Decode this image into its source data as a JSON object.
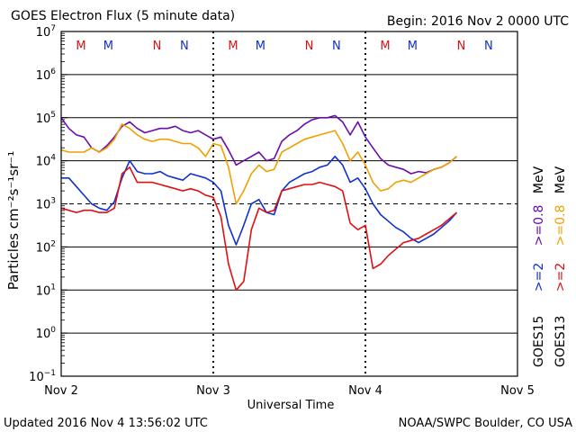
{
  "chart_data": {
    "type": "line",
    "title": "GOES Electron Flux (5 minute data)",
    "begin_label": "Begin: 2016 Nov 2 0000 UTC",
    "xlabel": "Universal Time",
    "ylabel": "Particles cm⁻²s⁻¹sr⁻¹",
    "yscale": "log",
    "ylim_exp": [
      -1,
      7
    ],
    "y_tick_exponents": [
      7,
      6,
      5,
      4,
      3,
      2,
      1,
      0,
      -1
    ],
    "y_tick_base": "10",
    "xlim_days": [
      0,
      3
    ],
    "x_ticks": [
      {
        "day": 0,
        "label": "Nov 2"
      },
      {
        "day": 1,
        "label": "Nov 3"
      },
      {
        "day": 2,
        "label": "Nov 4"
      },
      {
        "day": 3,
        "label": "Nov 5"
      }
    ],
    "reference_line_exp": 3,
    "mn_markers": [
      {
        "day": 0.13,
        "label": "M",
        "sat": "GOES13"
      },
      {
        "day": 0.31,
        "label": "M",
        "sat": "GOES15"
      },
      {
        "day": 0.63,
        "label": "N",
        "sat": "GOES13"
      },
      {
        "day": 0.81,
        "label": "N",
        "sat": "GOES15"
      },
      {
        "day": 1.13,
        "label": "M",
        "sat": "GOES13"
      },
      {
        "day": 1.31,
        "label": "M",
        "sat": "GOES15"
      },
      {
        "day": 1.63,
        "label": "N",
        "sat": "GOES13"
      },
      {
        "day": 1.81,
        "label": "N",
        "sat": "GOES15"
      },
      {
        "day": 2.13,
        "label": "M",
        "sat": "GOES13"
      },
      {
        "day": 2.31,
        "label": "M",
        "sat": "GOES15"
      },
      {
        "day": 2.63,
        "label": "N",
        "sat": "GOES13"
      },
      {
        "day": 2.81,
        "label": "N",
        "sat": "GOES15"
      }
    ],
    "series": [
      {
        "name": "GOES15 >=0.8 MeV",
        "color": "#6a0dad",
        "x": [
          0,
          0.05,
          0.1,
          0.15,
          0.2,
          0.25,
          0.3,
          0.35,
          0.4,
          0.45,
          0.5,
          0.55,
          0.6,
          0.65,
          0.7,
          0.75,
          0.8,
          0.85,
          0.9,
          0.95,
          1.0,
          1.05,
          1.1,
          1.15,
          1.2,
          1.25,
          1.3,
          1.35,
          1.4,
          1.45,
          1.5,
          1.55,
          1.6,
          1.65,
          1.7,
          1.75,
          1.8,
          1.85,
          1.9,
          1.95,
          2.0,
          2.05,
          2.1,
          2.15,
          2.2,
          2.25,
          2.3,
          2.35,
          2.4,
          2.45,
          2.5,
          2.55,
          2.6
        ],
        "y": [
          5.0,
          4.75,
          4.6,
          4.55,
          4.3,
          4.2,
          4.35,
          4.55,
          4.8,
          4.9,
          4.75,
          4.65,
          4.7,
          4.75,
          4.75,
          4.8,
          4.7,
          4.65,
          4.7,
          4.6,
          4.5,
          4.55,
          4.25,
          3.9,
          4.0,
          4.1,
          4.2,
          4.0,
          4.05,
          4.45,
          4.6,
          4.7,
          4.85,
          4.95,
          5.0,
          5.0,
          5.05,
          4.9,
          4.6,
          4.9,
          4.55,
          4.3,
          4.05,
          3.9,
          3.85,
          3.8,
          3.7,
          3.75,
          3.72,
          3.8,
          3.85,
          3.95,
          4.1
        ]
      },
      {
        "name": "GOES13 >=0.8 MeV",
        "color": "#f0a000",
        "x": [
          0,
          0.05,
          0.1,
          0.15,
          0.2,
          0.25,
          0.3,
          0.35,
          0.4,
          0.45,
          0.5,
          0.55,
          0.6,
          0.65,
          0.7,
          0.75,
          0.8,
          0.85,
          0.9,
          0.95,
          1.0,
          1.05,
          1.1,
          1.15,
          1.2,
          1.25,
          1.3,
          1.35,
          1.4,
          1.45,
          1.5,
          1.55,
          1.6,
          1.65,
          1.7,
          1.75,
          1.8,
          1.85,
          1.9,
          1.95,
          2.0,
          2.05,
          2.1,
          2.15,
          2.2,
          2.25,
          2.3,
          2.35,
          2.4,
          2.45,
          2.5,
          2.55,
          2.6
        ],
        "y": [
          4.25,
          4.2,
          4.2,
          4.2,
          4.3,
          4.2,
          4.3,
          4.5,
          4.85,
          4.75,
          4.6,
          4.5,
          4.45,
          4.5,
          4.5,
          4.45,
          4.4,
          4.4,
          4.3,
          4.1,
          4.4,
          4.35,
          3.85,
          3.0,
          3.3,
          3.7,
          3.9,
          3.75,
          3.8,
          4.2,
          4.3,
          4.4,
          4.5,
          4.55,
          4.6,
          4.65,
          4.7,
          4.4,
          4.0,
          4.2,
          3.9,
          3.5,
          3.3,
          3.35,
          3.5,
          3.55,
          3.5,
          3.6,
          3.7,
          3.8,
          3.85,
          3.95,
          4.1
        ]
      },
      {
        "name": "GOES15 >=2 MeV",
        "color": "#1030d0",
        "x": [
          0,
          0.05,
          0.1,
          0.15,
          0.2,
          0.25,
          0.3,
          0.35,
          0.4,
          0.45,
          0.5,
          0.55,
          0.6,
          0.65,
          0.7,
          0.75,
          0.8,
          0.85,
          0.9,
          0.95,
          1.0,
          1.05,
          1.1,
          1.15,
          1.2,
          1.25,
          1.3,
          1.35,
          1.4,
          1.45,
          1.5,
          1.55,
          1.6,
          1.65,
          1.7,
          1.75,
          1.8,
          1.85,
          1.9,
          1.95,
          2.0,
          2.05,
          2.1,
          2.15,
          2.2,
          2.25,
          2.3,
          2.35,
          2.4,
          2.45,
          2.5,
          2.55,
          2.6
        ],
        "y": [
          3.6,
          3.6,
          3.4,
          3.2,
          3.0,
          2.9,
          2.85,
          3.05,
          3.6,
          4.0,
          3.75,
          3.7,
          3.7,
          3.75,
          3.65,
          3.6,
          3.55,
          3.7,
          3.65,
          3.6,
          3.5,
          3.3,
          2.5,
          2.05,
          2.5,
          3.0,
          3.1,
          2.8,
          2.75,
          3.3,
          3.5,
          3.6,
          3.7,
          3.75,
          3.85,
          3.9,
          4.1,
          3.9,
          3.5,
          3.6,
          3.35,
          3.0,
          2.75,
          2.6,
          2.45,
          2.35,
          2.2,
          2.1,
          2.2,
          2.3,
          2.45,
          2.6,
          2.8
        ]
      },
      {
        "name": "GOES13 >=2 MeV",
        "color": "#e01010",
        "x": [
          0,
          0.05,
          0.1,
          0.15,
          0.2,
          0.25,
          0.3,
          0.35,
          0.4,
          0.45,
          0.5,
          0.55,
          0.6,
          0.65,
          0.7,
          0.75,
          0.8,
          0.85,
          0.9,
          0.95,
          1.0,
          1.05,
          1.1,
          1.15,
          1.2,
          1.25,
          1.3,
          1.35,
          1.4,
          1.45,
          1.5,
          1.55,
          1.6,
          1.65,
          1.7,
          1.75,
          1.8,
          1.85,
          1.9,
          1.95,
          2.0,
          2.05,
          2.1,
          2.15,
          2.2,
          2.25,
          2.3,
          2.35,
          2.4,
          2.45,
          2.5,
          2.55,
          2.6
        ],
        "y": [
          2.9,
          2.85,
          2.8,
          2.85,
          2.85,
          2.8,
          2.8,
          2.9,
          3.7,
          3.85,
          3.5,
          3.5,
          3.5,
          3.45,
          3.4,
          3.35,
          3.3,
          3.35,
          3.3,
          3.2,
          3.15,
          2.7,
          1.6,
          1.0,
          1.2,
          2.4,
          2.9,
          2.8,
          2.85,
          3.3,
          3.35,
          3.4,
          3.45,
          3.45,
          3.5,
          3.45,
          3.4,
          3.3,
          2.55,
          2.4,
          2.5,
          1.5,
          1.6,
          1.8,
          1.95,
          2.1,
          2.15,
          2.2,
          2.3,
          2.4,
          2.5,
          2.65,
          2.8
        ]
      }
    ],
    "legend": {
      "goes15_label": "GOES15",
      "goes13_label": "GOES13",
      "ge2": ">=2",
      "ge08": ">=0.8",
      "mev": "MeV"
    }
  },
  "footer": {
    "updated": "Updated 2016 Nov  4 13:56:02 UTC",
    "credit": "NOAA/SWPC Boulder, CO USA"
  },
  "colors": {
    "goes15_ge08": "#6a0dad",
    "goes13_ge08": "#f0a000",
    "goes15_ge2": "#1030d0",
    "goes13_ge2": "#e01010"
  }
}
